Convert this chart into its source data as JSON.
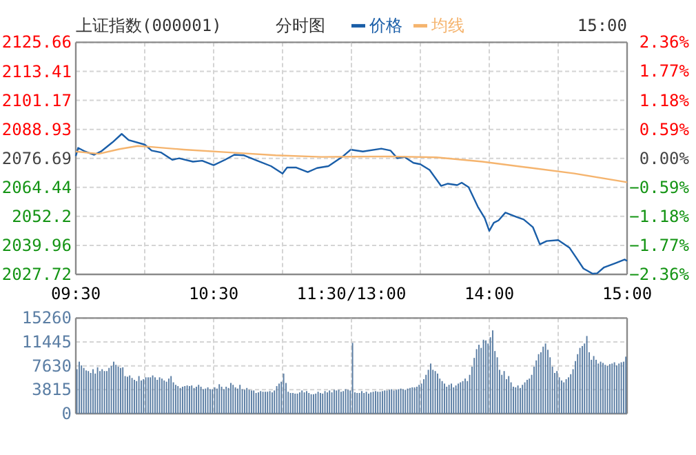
{
  "chart_data": [
    {
      "type": "line",
      "title": "上证指数(000001)",
      "subtitle": "分时图",
      "legend": "top",
      "grid": true,
      "xlim": [
        9.5,
        11.5
      ],
      "xticks": [
        {
          "value": 9.5,
          "label": "09:30"
        },
        {
          "value": 10,
          "label": null
        },
        {
          "value": 10.5,
          "label": "10:30"
        },
        {
          "value": 11,
          "label": null
        },
        {
          "value": 11.5,
          "label": "11:30/13:00"
        }
      ],
      "ylim": [
        2027.72,
        2125.66
      ],
      "yticks": [
        2027.72,
        2039.96,
        2052.2,
        2064.44,
        2076.69,
        2088.93,
        2101.17,
        2113.41,
        2125.66
      ],
      "series": [
        {
          "name": "价格",
          "color": "#1a5ea8",
          "x": [
            9.5,
            9.517,
            9.567,
            9.633,
            9.683,
            9.767,
            9.833,
            9.883,
            10.0,
            10.05,
            10.117,
            10.2,
            10.25,
            10.35,
            10.417,
            10.5,
            10.583,
            10.65,
            10.717,
            10.817,
            10.917,
            11.0,
            11.033,
            11.1,
            11.183,
            11.25,
            11.333,
            11.433,
            11.5
          ],
          "values": [
            2077.7,
            2081.1,
            2079.6,
            2078.2,
            2079.6,
            2083.5,
            2087.0,
            2084.4,
            2082.5,
            2080.0,
            2079.2,
            2076.1,
            2076.7,
            2075.3,
            2075.7,
            2073.8,
            2076.1,
            2078.2,
            2078.0,
            2075.7,
            2073.4,
            2070.3,
            2072.8,
            2072.8,
            2070.9,
            2072.6,
            2073.4,
            2077.3,
            2080.6
          ]
        },
        {
          "name": "均线",
          "color": "#f5b46e",
          "x": [
            9.5,
            9.667,
            9.817,
            9.95,
            10.05,
            10.283,
            10.617,
            10.95,
            11.283,
            11.5
          ],
          "values": [
            2079.6,
            2078.6,
            2080.6,
            2081.9,
            2081.5,
            2080.4,
            2079.2,
            2078.0,
            2077.3,
            2077.4
          ]
        }
      ]
    },
    {
      "type": "line",
      "grid": true,
      "tick_labels": "x",
      "annotations": [
        "15:00"
      ],
      "xlim": [
        13,
        15
      ],
      "xticks": [
        {
          "value": 13,
          "label": null
        },
        {
          "value": 13.5,
          "label": null
        },
        {
          "value": 14,
          "label": "14:00"
        },
        {
          "value": 14.5,
          "label": null
        },
        {
          "value": 15,
          "label": "15:00"
        }
      ],
      "ylim": [
        2027.72,
        2125.66
      ],
      "yticks": [
        2027.72,
        2039.96,
        2052.2,
        2064.44,
        2076.69,
        2088.93,
        2101.17,
        2113.41,
        2125.66
      ],
      "y2lim": [
        -2.36,
        2.36
      ],
      "y2ticks": [
        {
          "value": -2.36,
          "label": "−2.36%"
        },
        {
          "value": -1.77,
          "label": "−1.77%"
        },
        {
          "value": -1.18,
          "label": "−1.18%"
        },
        {
          "value": -0.59,
          "label": "−0.59%"
        },
        {
          "value": 0,
          "label": "0.00%"
        },
        {
          "value": 0.59,
          "label": "0.59%"
        },
        {
          "value": 1.18,
          "label": "1.18%"
        },
        {
          "value": 1.77,
          "label": "1.77%"
        },
        {
          "value": 2.36,
          "label": "2.36%"
        }
      ],
      "series": [
        {
          "color": "#1a5ea8",
          "x": [
            13.0,
            13.083,
            13.217,
            13.283,
            13.333,
            13.383,
            13.45,
            13.5,
            13.567,
            13.65,
            13.7,
            13.767,
            13.8,
            13.85,
            13.917,
            13.967,
            14.0,
            14.033,
            14.067,
            14.117,
            14.2,
            14.25,
            14.317,
            14.367,
            14.417,
            14.5,
            14.583,
            14.633,
            14.683,
            14.75,
            14.783,
            14.833,
            14.917,
            14.983,
            15.0
          ],
          "values": [
            2080.3,
            2079.6,
            2080.8,
            2080.0,
            2076.7,
            2077.3,
            2074.8,
            2074.2,
            2071.8,
            2065.1,
            2066.0,
            2065.4,
            2066.4,
            2064.5,
            2056.3,
            2051.5,
            2046.1,
            2049.5,
            2050.5,
            2053.8,
            2051.9,
            2050.9,
            2047.6,
            2040.4,
            2041.8,
            2042.2,
            2038.9,
            2034.6,
            2030.2,
            2028.0,
            2028.2,
            2030.7,
            2032.5,
            2034.0,
            2033.4
          ]
        },
        {
          "color": "#f5b46e",
          "x": [
            13.0,
            13.283,
            13.617,
            13.95,
            14.283,
            14.617,
            15.0
          ],
          "values": [
            2077.4,
            2077.5,
            2077.1,
            2075.3,
            2072.8,
            2070.3,
            2066.6
          ]
        }
      ]
    },
    {
      "type": "bar",
      "grid": true,
      "tick_labels": "y",
      "color": "#5b7ea4",
      "xlim": [
        9.5,
        11.5
      ],
      "xticks": [
        {
          "value": 9.5,
          "label": null
        },
        {
          "value": 10,
          "label": null
        },
        {
          "value": 10.5,
          "label": null
        },
        {
          "value": 11,
          "label": null
        },
        {
          "value": 11.5,
          "label": null
        }
      ],
      "ylim": [
        0,
        15260
      ],
      "yticks": [
        0,
        3815,
        7630,
        11445,
        15260
      ],
      "x": [
        9.5,
        9.517,
        9.533,
        9.55,
        9.567,
        9.583,
        9.6,
        9.617,
        9.633,
        9.65,
        9.667,
        9.683,
        9.7,
        9.717,
        9.733,
        9.75,
        9.767,
        9.783,
        9.8,
        9.817,
        9.833,
        9.85,
        9.867,
        9.883,
        9.9,
        9.917,
        9.933,
        9.95,
        9.967,
        9.983,
        10.0,
        10.017,
        10.033,
        10.05,
        10.067,
        10.083,
        10.1,
        10.117,
        10.133,
        10.15,
        10.167,
        10.183,
        10.2,
        10.217,
        10.233,
        10.25,
        10.267,
        10.283,
        10.3,
        10.317,
        10.333,
        10.35,
        10.367,
        10.383,
        10.4,
        10.417,
        10.433,
        10.45,
        10.467,
        10.483,
        10.5,
        10.517,
        10.533,
        10.55,
        10.567,
        10.583,
        10.6,
        10.617,
        10.633,
        10.65,
        10.667,
        10.683,
        10.7,
        10.717,
        10.733,
        10.75,
        10.767,
        10.783,
        10.8,
        10.817,
        10.833,
        10.85,
        10.867,
        10.883,
        10.9,
        10.917,
        10.933,
        10.95,
        10.967,
        10.983,
        11.0,
        11.017,
        11.033,
        11.05,
        11.067,
        11.083,
        11.1,
        11.117,
        11.133,
        11.15,
        11.167,
        11.183,
        11.2,
        11.217,
        11.233,
        11.25,
        11.267,
        11.283,
        11.3,
        11.317,
        11.333,
        11.35,
        11.367,
        11.383,
        11.4,
        11.417,
        11.433,
        11.45,
        11.467,
        11.483
      ],
      "values": [
        7100,
        8300,
        7700,
        7300,
        6900,
        6800,
        6500,
        7100,
        6400,
        7400,
        6800,
        7100,
        6800,
        6800,
        7300,
        7600,
        8300,
        7800,
        7500,
        7300,
        7400,
        6000,
        5900,
        6100,
        5700,
        5400,
        5200,
        6000,
        5300,
        5500,
        5800,
        5800,
        5800,
        6100,
        5800,
        5400,
        5800,
        5600,
        5300,
        5100,
        5600,
        6000,
        5000,
        4600,
        4400,
        4100,
        4300,
        4400,
        4500,
        4400,
        4500,
        4100,
        4300,
        4600,
        4300,
        3900,
        4000,
        4200,
        3900,
        3900,
        4200,
        4000,
        4700,
        4300,
        3900,
        4300,
        4100,
        4900,
        4600,
        4200,
        4000,
        4600,
        3900,
        3800,
        4100,
        3800,
        3700,
        3700,
        3300,
        3400,
        3600,
        3500,
        3500,
        3500,
        3600,
        3400,
        3700,
        4400,
        4800,
        5100,
        6400,
        4900,
        3500,
        3300,
        3300,
        3200,
        3200,
        3400,
        3700,
        3400,
        3600,
        3300,
        3100,
        3100,
        3200,
        3500,
        3300,
        3200,
        3600,
        3400,
        3700,
        3400,
        3800,
        3700,
        3800,
        3500,
        3600,
        3900,
        3800,
        3700
      ]
    },
    {
      "type": "bar",
      "grid": true,
      "tick_labels": false,
      "color": "#5b7ea4",
      "xlim": [
        13,
        15
      ],
      "xticks": [
        {
          "value": 13,
          "label": null
        },
        {
          "value": 13.5,
          "label": null
        },
        {
          "value": 14,
          "label": null
        },
        {
          "value": 14.5,
          "label": null
        },
        {
          "value": 15,
          "label": null
        }
      ],
      "ylim": [
        0,
        15260
      ],
      "yticks": [
        0,
        3815,
        7630,
        11445,
        15260
      ],
      "x": [
        13.0,
        13.017,
        13.033,
        13.05,
        13.067,
        13.083,
        13.1,
        13.117,
        13.133,
        13.15,
        13.167,
        13.183,
        13.2,
        13.217,
        13.233,
        13.25,
        13.267,
        13.283,
        13.3,
        13.317,
        13.333,
        13.35,
        13.367,
        13.383,
        13.4,
        13.417,
        13.433,
        13.45,
        13.467,
        13.483,
        13.5,
        13.517,
        13.533,
        13.55,
        13.567,
        13.583,
        13.6,
        13.617,
        13.633,
        13.65,
        13.667,
        13.683,
        13.7,
        13.717,
        13.733,
        13.75,
        13.767,
        13.783,
        13.8,
        13.817,
        13.833,
        13.85,
        13.867,
        13.883,
        13.9,
        13.917,
        13.933,
        13.95,
        13.967,
        13.983,
        14.0,
        14.017,
        14.033,
        14.05,
        14.067,
        14.083,
        14.1,
        14.117,
        14.133,
        14.15,
        14.167,
        14.183,
        14.2,
        14.217,
        14.233,
        14.25,
        14.267,
        14.283,
        14.3,
        14.317,
        14.333,
        14.35,
        14.367,
        14.383,
        14.4,
        14.417,
        14.433,
        14.45,
        14.467,
        14.483,
        14.5,
        14.517,
        14.533,
        14.55,
        14.567,
        14.583,
        14.6,
        14.617,
        14.633,
        14.65,
        14.667,
        14.683,
        14.7,
        14.717,
        14.733,
        14.75,
        14.767,
        14.783,
        14.8,
        14.817,
        14.833,
        14.85,
        14.867,
        14.883,
        14.9,
        14.917,
        14.933,
        14.95,
        14.967,
        14.983
      ],
      "values": [
        11300,
        3400,
        3300,
        3300,
        3600,
        3300,
        3500,
        3200,
        3400,
        3500,
        3600,
        3500,
        3500,
        3600,
        3700,
        3700,
        3800,
        3900,
        3700,
        3800,
        3900,
        4000,
        3900,
        3800,
        4000,
        4100,
        4200,
        4200,
        4300,
        4600,
        4800,
        5500,
        6200,
        7000,
        8000,
        7000,
        6800,
        6400,
        5600,
        5200,
        4800,
        4300,
        4600,
        4800,
        4200,
        4500,
        4800,
        5000,
        5200,
        5600,
        5200,
        6200,
        7500,
        8900,
        10300,
        11000,
        10500,
        11800,
        11700,
        11200,
        12200,
        13300,
        10000,
        9000,
        7000,
        6200,
        6800,
        5500,
        6000,
        5000,
        4300,
        4200,
        4500,
        4100,
        4600,
        5000,
        5400,
        5600,
        6200,
        7500,
        8500,
        9500,
        9800,
        10700,
        11200,
        10200,
        9000,
        7500,
        6500,
        6800,
        5800,
        5300,
        5000,
        5500,
        5800,
        6300,
        7100,
        8400,
        9500,
        10500,
        10800,
        11200,
        12400,
        9800,
        8600,
        9200,
        8600,
        8000,
        8300,
        8100,
        7800,
        7600,
        7900,
        8000,
        8200,
        7700,
        8000,
        8200,
        8300,
        9100
      ]
    }
  ]
}
